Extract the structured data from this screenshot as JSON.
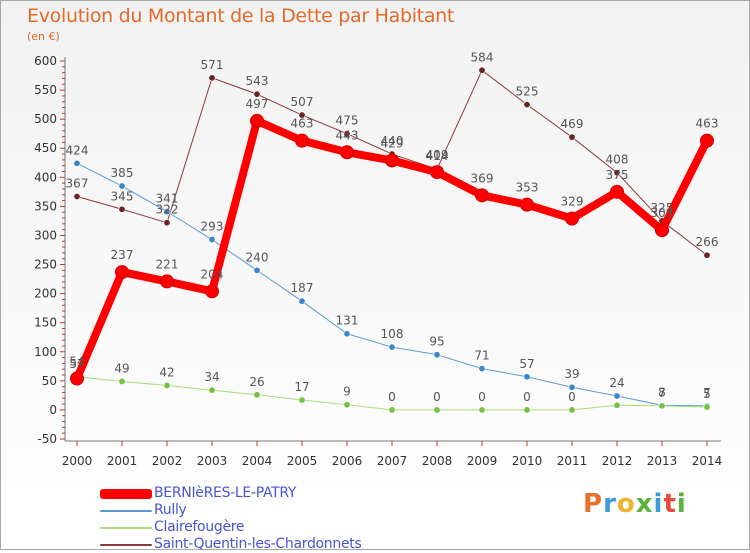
{
  "title": "Evolution du Montant de la Dette par Habitant",
  "subtitle": "(en €)",
  "brand": {
    "letters": [
      "P",
      "r",
      "o",
      "x",
      "i",
      "t",
      "i"
    ],
    "colors": [
      "#e8702a",
      "#3a9dd9",
      "#f0b32b",
      "#5ab33a",
      "#3a9dd9",
      "#e84a3a",
      "#5ab33a"
    ]
  },
  "chart_data": {
    "type": "line",
    "x": [
      "2000",
      "2001",
      "2002",
      "2003",
      "2004",
      "2005",
      "2006",
      "2007",
      "2008",
      "2009",
      "2010",
      "2011",
      "2012",
      "2013",
      "2014"
    ],
    "yticks": [
      -50,
      0,
      50,
      100,
      150,
      200,
      250,
      300,
      350,
      400,
      450,
      500,
      550,
      600
    ],
    "ylim": [
      -50,
      600
    ],
    "grid": false,
    "legend_position": "bottom-left",
    "series": [
      {
        "name": "BERNIèRES-LE-PATRY",
        "color": "#ff0000",
        "marker_color": "#ff0000",
        "values": [
          54,
          237,
          221,
          204,
          497,
          463,
          443,
          429,
          409,
          369,
          353,
          329,
          375,
          309,
          463
        ],
        "labels": [
          "54",
          "237",
          "221",
          "204",
          "497",
          "463",
          "443",
          "429",
          "409",
          "369",
          "353",
          "329",
          "375",
          "309",
          "463"
        ]
      },
      {
        "name": "Rully",
        "color": "#5b9bd5",
        "marker_color": "#3c86c6",
        "values": [
          424,
          385,
          341,
          293,
          240,
          187,
          131,
          108,
          95,
          71,
          57,
          39,
          24,
          8,
          7
        ],
        "labels": [
          "424",
          "385",
          "341",
          "293",
          "240",
          "187",
          "131",
          "108",
          "95",
          "71",
          "57",
          "39",
          "24",
          "8",
          "7"
        ]
      },
      {
        "name": "Clairefougère",
        "color": "#a6dd7a",
        "marker_color": "#76c043",
        "values": [
          57,
          49,
          42,
          34,
          26,
          17,
          9,
          0,
          0,
          0,
          0,
          0,
          8,
          7,
          5
        ],
        "labels": [
          "57",
          "49",
          "42",
          "34",
          "26",
          "17",
          "9",
          "0",
          "0",
          "0",
          "0",
          "0",
          "",
          "7",
          "5"
        ]
      },
      {
        "name": "Saint-Quentin-les-Chardonnets",
        "color": "#8b3a3a",
        "marker_color": "#6b2424",
        "values": [
          367,
          345,
          322,
          571,
          543,
          507,
          475,
          440,
          414,
          584,
          525,
          469,
          408,
          325,
          266
        ],
        "labels": [
          "367",
          "345",
          "322",
          "571",
          "543",
          "507",
          "475",
          "440",
          "414",
          "584",
          "525",
          "469",
          "408",
          "325",
          "266"
        ]
      }
    ]
  }
}
